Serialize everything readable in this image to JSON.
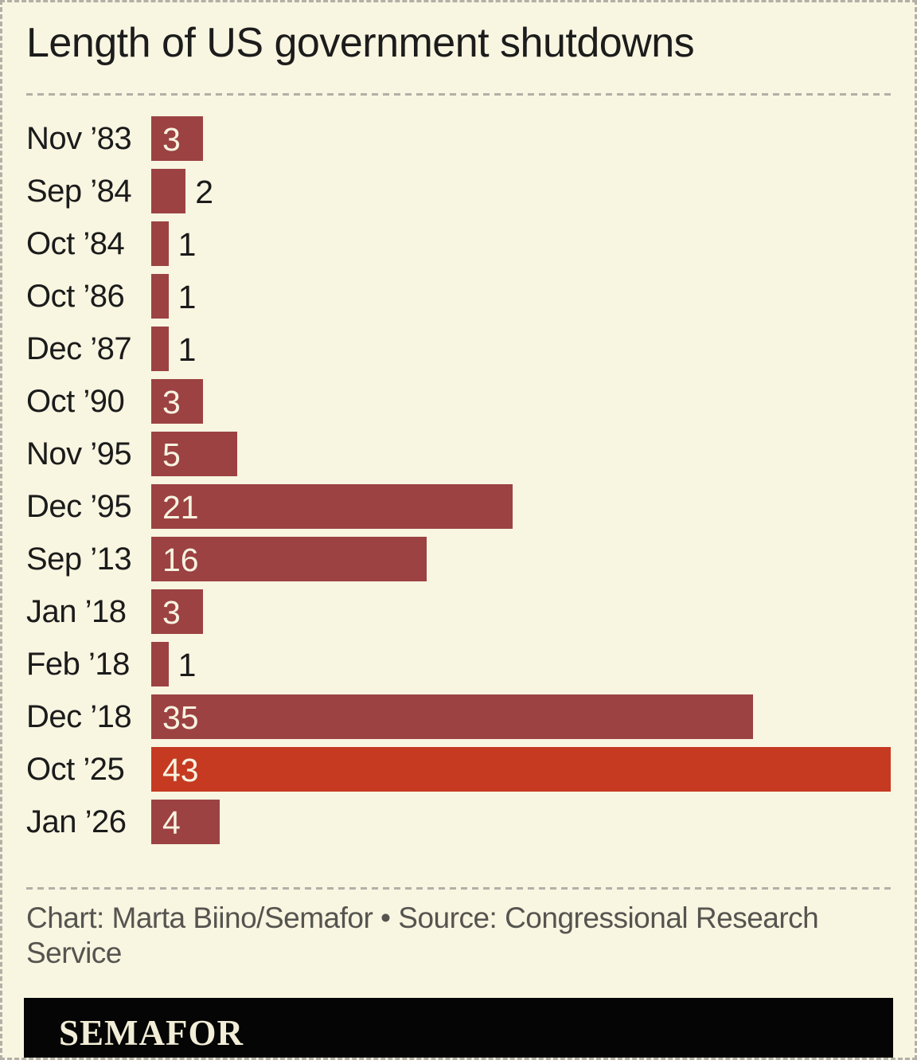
{
  "header": {
    "title": "Length of US government shutdowns"
  },
  "colors": {
    "background": "#f8f5e1",
    "bar_default": "#9c4243",
    "bar_highlight": "#c63a22",
    "title_text": "#1c1c1c",
    "label_text": "#1b1b1b",
    "value_text_inside": "#f7f3e0",
    "credit_text": "#55544f",
    "dashed_line": "#b2b0a6",
    "footer_bg": "#050505",
    "logo_text": "#f2edd7"
  },
  "chart_data": {
    "type": "bar",
    "orientation": "horizontal",
    "title": "Length of US government shutdowns",
    "unit": "days",
    "categories": [
      "Nov ’83",
      "Sep ’84",
      "Oct ’84",
      "Oct ’86",
      "Dec ’87",
      "Oct ’90",
      "Nov ’95",
      "Dec ’95",
      "Sep ’13",
      "Jan ’18",
      "Feb ’18",
      "Dec ’18",
      "Oct ’25",
      "Jan ’26"
    ],
    "values": [
      3,
      2,
      1,
      1,
      1,
      3,
      5,
      21,
      16,
      3,
      1,
      35,
      43,
      4
    ],
    "highlight_index": 12,
    "highlight_category": "Oct ’25",
    "xlim": [
      0,
      43
    ],
    "grid": false,
    "legend": false,
    "data_labels": true
  },
  "footer": {
    "credit": "Chart: Marta Biino/Semafor • Source: Congressional Research Service",
    "logo": "SEMAFOR"
  }
}
